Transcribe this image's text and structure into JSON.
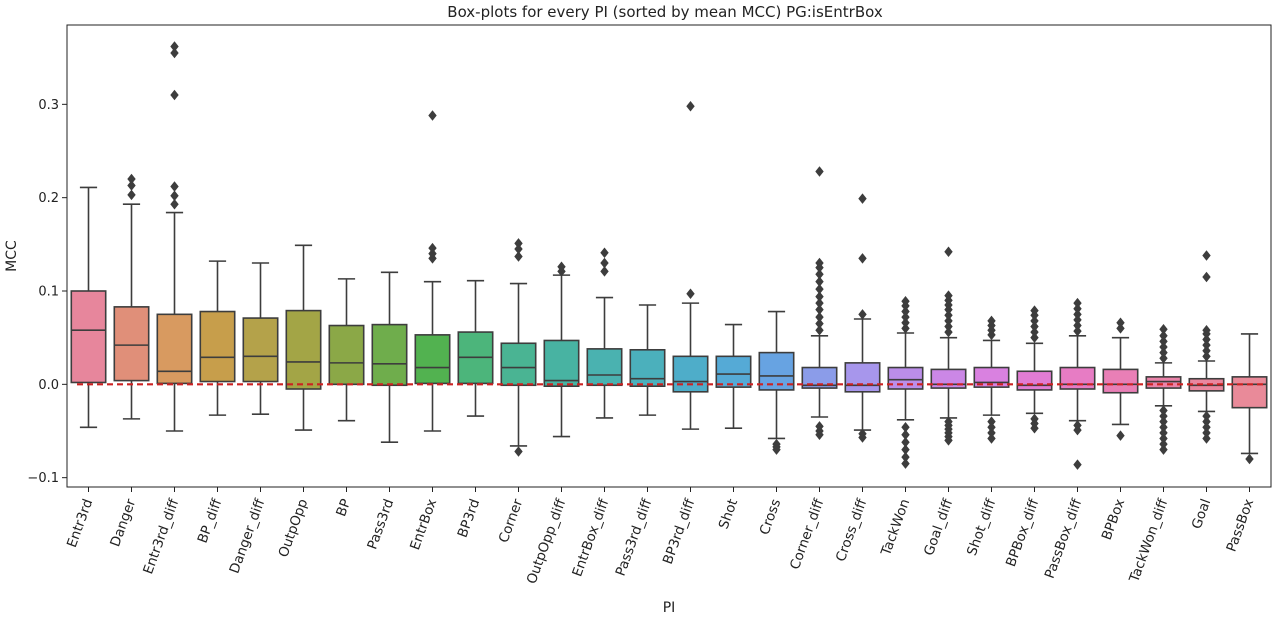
{
  "chart_data": {
    "type": "box",
    "title": "Box-plots for every PI (sorted by mean MCC) PG:isEntrBox",
    "xlabel": "PI",
    "ylabel": "MCC",
    "ylim": [
      -0.11,
      0.385
    ],
    "yticks": [
      -0.1,
      0.0,
      0.1,
      0.2,
      0.3
    ],
    "ytick_labels": [
      "−0.1",
      "0.0",
      "0.1",
      "0.2",
      "0.3"
    ],
    "reference_line": {
      "y": 0.0,
      "style": "dashed",
      "color": "#cc2222"
    },
    "grid": false,
    "categories": [
      "Entr3rd",
      "Danger",
      "Entr3rd_diff",
      "BP_diff",
      "Danger_diff",
      "OutpOpp",
      "BP",
      "Pass3rd",
      "EntrBox",
      "BP3rd",
      "Corner",
      "OutpOpp_diff",
      "EntrBox_diff",
      "Pass3rd_diff",
      "BP3rd_diff",
      "Shot",
      "Cross",
      "Corner_diff",
      "Cross_diff",
      "TackWon",
      "Goal_diff",
      "Shot_diff",
      "BPBox_diff",
      "PassBox_diff",
      "BPBox",
      "TackWon_diff",
      "Goal",
      "PassBox"
    ],
    "colors": [
      "#e7869c",
      "#e08f79",
      "#d89a60",
      "#c79e4b",
      "#b4a24a",
      "#a3a546",
      "#8ba847",
      "#6fad4c",
      "#52b250",
      "#4cb57b",
      "#4ab493",
      "#48b3a2",
      "#4ab2b0",
      "#4bb0bc",
      "#4eadc9",
      "#55aad6",
      "#67a3e2",
      "#8b9ce9",
      "#a796ec",
      "#bb8ee9",
      "#cb87e6",
      "#d981e0",
      "#e27cd4",
      "#e77cc4",
      "#e97fb6",
      "#ea83a9",
      "#ea879f",
      "#e98a99"
    ],
    "boxes": [
      {
        "whisker_low": -0.046,
        "q1": 0.002,
        "median": 0.058,
        "q3": 0.1,
        "whisker_high": 0.211,
        "outliers": []
      },
      {
        "whisker_low": -0.037,
        "q1": 0.004,
        "median": 0.042,
        "q3": 0.083,
        "whisker_high": 0.193,
        "outliers": [
          0.203,
          0.213,
          0.22
        ]
      },
      {
        "whisker_low": -0.05,
        "q1": 0.001,
        "median": 0.014,
        "q3": 0.075,
        "whisker_high": 0.184,
        "outliers": [
          0.193,
          0.202,
          0.212,
          0.31,
          0.355,
          0.362
        ]
      },
      {
        "whisker_low": -0.033,
        "q1": 0.003,
        "median": 0.029,
        "q3": 0.078,
        "whisker_high": 0.132,
        "outliers": []
      },
      {
        "whisker_low": -0.032,
        "q1": 0.003,
        "median": 0.03,
        "q3": 0.071,
        "whisker_high": 0.13,
        "outliers": []
      },
      {
        "whisker_low": -0.049,
        "q1": -0.005,
        "median": 0.024,
        "q3": 0.079,
        "whisker_high": 0.149,
        "outliers": []
      },
      {
        "whisker_low": -0.039,
        "q1": 0.0,
        "median": 0.023,
        "q3": 0.063,
        "whisker_high": 0.113,
        "outliers": []
      },
      {
        "whisker_low": -0.062,
        "q1": -0.001,
        "median": 0.022,
        "q3": 0.064,
        "whisker_high": 0.12,
        "outliers": []
      },
      {
        "whisker_low": -0.05,
        "q1": 0.001,
        "median": 0.018,
        "q3": 0.053,
        "whisker_high": 0.11,
        "outliers": [
          0.135,
          0.14,
          0.146,
          0.288
        ]
      },
      {
        "whisker_low": -0.034,
        "q1": 0.001,
        "median": 0.029,
        "q3": 0.056,
        "whisker_high": 0.111,
        "outliers": []
      },
      {
        "whisker_low": -0.066,
        "q1": -0.001,
        "median": 0.018,
        "q3": 0.044,
        "whisker_high": 0.108,
        "outliers": [
          -0.072,
          0.137,
          0.145,
          0.151
        ]
      },
      {
        "whisker_low": -0.056,
        "q1": -0.002,
        "median": 0.004,
        "q3": 0.047,
        "whisker_high": 0.117,
        "outliers": [
          0.121,
          0.126
        ]
      },
      {
        "whisker_low": -0.036,
        "q1": -0.001,
        "median": 0.01,
        "q3": 0.038,
        "whisker_high": 0.093,
        "outliers": [
          0.121,
          0.13,
          0.141
        ]
      },
      {
        "whisker_low": -0.033,
        "q1": -0.002,
        "median": 0.006,
        "q3": 0.037,
        "whisker_high": 0.085,
        "outliers": []
      },
      {
        "whisker_low": -0.048,
        "q1": -0.008,
        "median": 0.003,
        "q3": 0.03,
        "whisker_high": 0.087,
        "outliers": [
          0.097,
          0.298
        ]
      },
      {
        "whisker_low": -0.047,
        "q1": -0.003,
        "median": 0.011,
        "q3": 0.03,
        "whisker_high": 0.064,
        "outliers": []
      },
      {
        "whisker_low": -0.058,
        "q1": -0.006,
        "median": 0.009,
        "q3": 0.034,
        "whisker_high": 0.078,
        "outliers": [
          -0.064,
          -0.067,
          -0.07
        ]
      },
      {
        "whisker_low": -0.035,
        "q1": -0.004,
        "median": -0.001,
        "q3": 0.018,
        "whisker_high": 0.052,
        "outliers": [
          -0.045,
          -0.05,
          -0.054,
          0.058,
          0.065,
          0.072,
          0.08,
          0.087,
          0.094,
          0.102,
          0.11,
          0.118,
          0.125,
          0.13,
          0.228
        ]
      },
      {
        "whisker_low": -0.049,
        "q1": -0.008,
        "median": -0.001,
        "q3": 0.023,
        "whisker_high": 0.07,
        "outliers": [
          -0.053,
          -0.057,
          0.075,
          0.135,
          0.199
        ]
      },
      {
        "whisker_low": -0.038,
        "q1": -0.005,
        "median": 0.005,
        "q3": 0.018,
        "whisker_high": 0.055,
        "outliers": [
          -0.046,
          -0.054,
          -0.062,
          -0.07,
          -0.078,
          -0.085,
          0.06,
          0.066,
          0.072,
          0.078,
          0.084,
          0.089
        ]
      },
      {
        "whisker_low": -0.036,
        "q1": -0.004,
        "median": 0.0,
        "q3": 0.016,
        "whisker_high": 0.05,
        "outliers": [
          -0.04,
          -0.044,
          -0.048,
          -0.052,
          -0.056,
          -0.06,
          0.056,
          0.062,
          0.068,
          0.074,
          0.08,
          0.085,
          0.09,
          0.095,
          0.142
        ]
      },
      {
        "whisker_low": -0.033,
        "q1": -0.003,
        "median": 0.002,
        "q3": 0.018,
        "whisker_high": 0.047,
        "outliers": [
          -0.04,
          -0.046,
          -0.052,
          -0.058,
          0.053,
          0.058,
          0.063,
          0.068
        ]
      },
      {
        "whisker_low": -0.031,
        "q1": -0.006,
        "median": -0.001,
        "q3": 0.014,
        "whisker_high": 0.044,
        "outliers": [
          -0.037,
          -0.042,
          -0.047,
          0.05,
          0.056,
          0.062,
          0.068,
          0.074,
          0.079
        ]
      },
      {
        "whisker_low": -0.039,
        "q1": -0.005,
        "median": 0.0,
        "q3": 0.018,
        "whisker_high": 0.052,
        "outliers": [
          -0.044,
          -0.049,
          -0.086,
          0.057,
          0.063,
          0.069,
          0.075,
          0.081,
          0.087
        ]
      },
      {
        "whisker_low": -0.043,
        "q1": -0.009,
        "median": 0.0,
        "q3": 0.016,
        "whisker_high": 0.05,
        "outliers": [
          -0.055,
          0.06,
          0.066
        ]
      },
      {
        "whisker_low": -0.023,
        "q1": -0.004,
        "median": 0.003,
        "q3": 0.008,
        "whisker_high": 0.023,
        "outliers": [
          -0.028,
          -0.034,
          -0.04,
          -0.046,
          -0.052,
          -0.058,
          -0.064,
          -0.07,
          0.028,
          0.034,
          0.04,
          0.046,
          0.052,
          0.059
        ]
      },
      {
        "whisker_low": -0.029,
        "q1": -0.007,
        "median": -0.001,
        "q3": 0.006,
        "whisker_high": 0.025,
        "outliers": [
          -0.034,
          -0.04,
          -0.046,
          -0.052,
          -0.058,
          0.03,
          0.036,
          0.042,
          0.048,
          0.054,
          0.058,
          0.115,
          0.138
        ]
      },
      {
        "whisker_low": -0.074,
        "q1": -0.025,
        "median": 0.0,
        "q3": 0.008,
        "whisker_high": 0.054,
        "outliers": [
          -0.08
        ]
      }
    ]
  }
}
